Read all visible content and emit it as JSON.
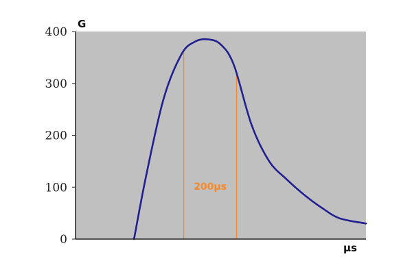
{
  "chart_data": {
    "type": "line",
    "ylabel": "G",
    "xlabel": "μs",
    "ylim": [
      0,
      400
    ],
    "yticks": [
      {
        "value": 0,
        "label": "0"
      },
      {
        "value": 100,
        "label": "100"
      },
      {
        "value": 200,
        "label": "200"
      },
      {
        "value": 300,
        "label": "300"
      },
      {
        "value": 400,
        "label": "400"
      }
    ],
    "xlim": [
      0,
      660
    ],
    "grid": false,
    "background_color": "#c0c0c0",
    "series": [
      {
        "color": "#1f1f8f",
        "x": [
          133,
          160,
          200,
          240,
          270,
          300,
          330,
          360,
          400,
          440,
          480,
          520,
          560,
          600,
          660
        ],
        "y": [
          0,
          120,
          270,
          355,
          380,
          385,
          375,
          335,
          220,
          150,
          115,
          85,
          60,
          40,
          30
        ]
      }
    ],
    "annotations": {
      "interval_label": "200μs",
      "interval_color": "#f28a30",
      "interval_lines": [
        246,
        366
      ]
    }
  }
}
